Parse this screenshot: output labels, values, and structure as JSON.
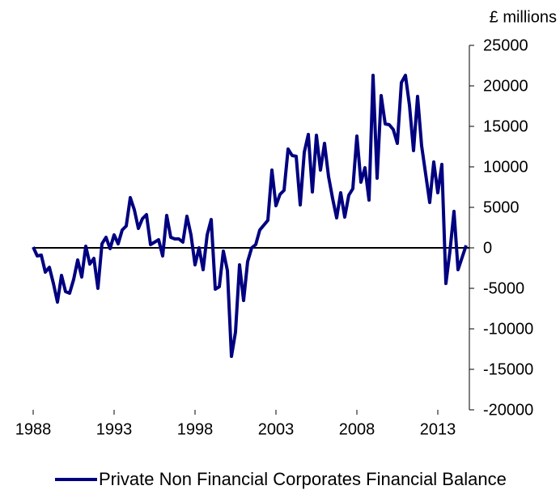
{
  "chart_data": {
    "type": "line",
    "y_label": "£ millions",
    "x": [
      1988,
      1988.25,
      1988.5,
      1988.75,
      1989,
      1989.25,
      1989.5,
      1989.75,
      1990,
      1990.25,
      1990.5,
      1990.75,
      1991,
      1991.25,
      1991.5,
      1991.75,
      1992,
      1992.25,
      1992.5,
      1992.75,
      1993,
      1993.25,
      1993.5,
      1993.75,
      1994,
      1994.25,
      1994.5,
      1994.75,
      1995,
      1995.25,
      1995.5,
      1995.75,
      1996,
      1996.25,
      1996.5,
      1996.75,
      1997,
      1997.25,
      1997.5,
      1997.75,
      1998,
      1998.25,
      1998.5,
      1998.75,
      1999,
      1999.25,
      1999.5,
      1999.75,
      2000,
      2000.25,
      2000.5,
      2000.75,
      2001,
      2001.25,
      2001.5,
      2001.75,
      2002,
      2002.25,
      2002.5,
      2002.75,
      2003,
      2003.25,
      2003.5,
      2003.75,
      2004,
      2004.25,
      2004.5,
      2004.75,
      2005,
      2005.25,
      2005.5,
      2005.75,
      2006,
      2006.25,
      2006.5,
      2006.75,
      2007,
      2007.25,
      2007.5,
      2007.75,
      2008,
      2008.25,
      2008.5,
      2008.75,
      2009,
      2009.25,
      2009.5,
      2009.75,
      2010,
      2010.25,
      2010.5,
      2010.75,
      2011,
      2011.25,
      2011.5,
      2011.75,
      2012,
      2012.25,
      2012.5,
      2012.75,
      2013,
      2013.25,
      2013.5,
      2013.75,
      2014,
      2014.25,
      2014.5,
      2014.75
    ],
    "series": [
      {
        "name": "Private Non Financial Corporates Financial Balance",
        "color": "#000080",
        "values": [
          100,
          -1000,
          -900,
          -3000,
          -2400,
          -4400,
          -6700,
          -3400,
          -5400,
          -5600,
          -3900,
          -1500,
          -3600,
          200,
          -2000,
          -1300,
          -5000,
          500,
          1300,
          -100,
          1600,
          500,
          2200,
          2700,
          6200,
          4700,
          2400,
          3600,
          4100,
          400,
          700,
          1000,
          -1000,
          4000,
          1300,
          1100,
          1100,
          700,
          3900,
          1600,
          -2100,
          0,
          -2700,
          1600,
          3500,
          -5100,
          -4800,
          -400,
          -2800,
          -13400,
          -10400,
          -2100,
          -6500,
          -1700,
          0,
          400,
          2200,
          2800,
          3400,
          9600,
          5200,
          6600,
          7100,
          12200,
          11400,
          11300,
          5300,
          11800,
          14000,
          6900,
          13900,
          9600,
          12900,
          8800,
          6100,
          3700,
          6800,
          3800,
          6500,
          7300,
          13800,
          8100,
          9900,
          5900,
          21300,
          8600,
          18800,
          15300,
          15200,
          14600,
          12900,
          20400,
          21300,
          17600,
          12000,
          18700,
          12600,
          9100,
          5600,
          10600,
          6800,
          10300,
          -4400,
          -400,
          4500,
          -2700,
          -1200,
          300
        ]
      }
    ],
    "xlim": [
      1988,
      2014.75
    ],
    "xticks": [
      1988,
      1993,
      1998,
      2003,
      2008,
      2013
    ],
    "ylim": [
      -20000,
      25000
    ],
    "yticks": [
      -20000,
      -15000,
      -10000,
      -5000,
      0,
      5000,
      10000,
      15000,
      20000,
      25000
    ],
    "legend": "bottom"
  }
}
